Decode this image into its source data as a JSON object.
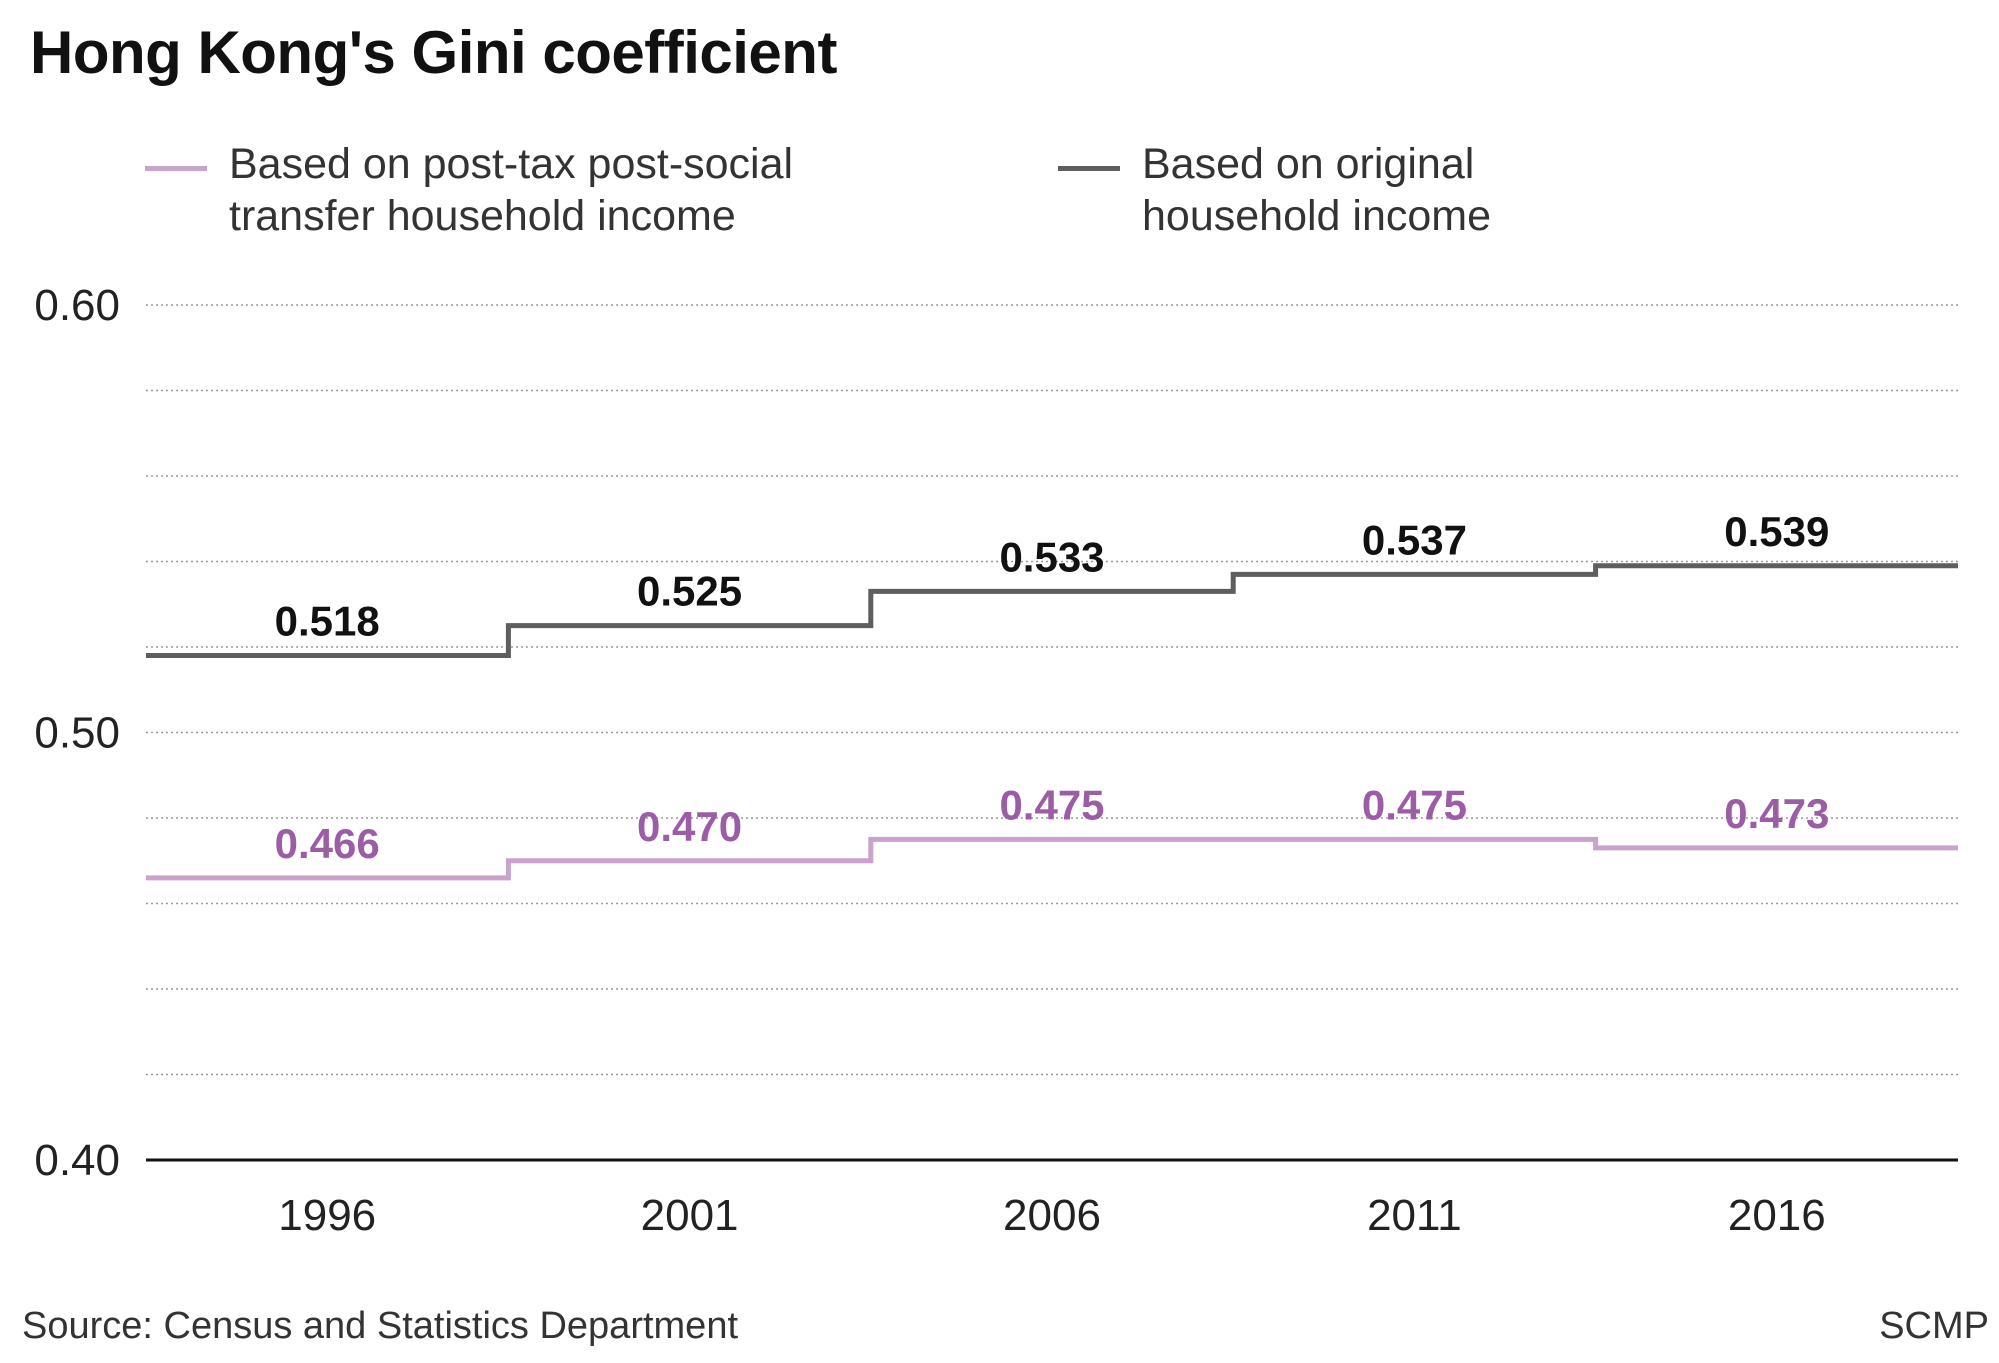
{
  "chart_data": {
    "type": "line",
    "step": "mid",
    "title": "Hong Kong's Gini coefficient",
    "xlabel": "",
    "ylabel": "",
    "categories": [
      "1996",
      "2001",
      "2006",
      "2011",
      "2016"
    ],
    "ylim": [
      0.4,
      0.6
    ],
    "yticks": [
      {
        "value": 0.4,
        "label": "0.40"
      },
      {
        "value": 0.5,
        "label": "0.50"
      },
      {
        "value": 0.6,
        "label": "0.60"
      }
    ],
    "gridlines": [
      0.42,
      0.44,
      0.46,
      0.48,
      0.5,
      0.52,
      0.54,
      0.56,
      0.58,
      0.6
    ],
    "grid": true,
    "legend_position": "top",
    "series": [
      {
        "name": "Based on post-tax post-social transfer household income",
        "color": "#c9a2cd",
        "label_color": "#9b5ea6",
        "values": [
          0.466,
          0.47,
          0.475,
          0.475,
          0.473
        ],
        "labels": [
          "0.466",
          "0.470",
          "0.475",
          "0.475",
          "0.473"
        ]
      },
      {
        "name": "Based on original household income",
        "color": "#5e5e5e",
        "label_color": "#111111",
        "values": [
          0.518,
          0.525,
          0.533,
          0.537,
          0.539
        ],
        "labels": [
          "0.518",
          "0.525",
          "0.533",
          "0.537",
          "0.539"
        ]
      }
    ]
  },
  "legend": {
    "post_tax": "Based on post-tax post-social transfer household income",
    "original": "Based on original household income"
  },
  "footer": {
    "source": "Source: Census and Statistics Department",
    "credit": "SCMP"
  }
}
